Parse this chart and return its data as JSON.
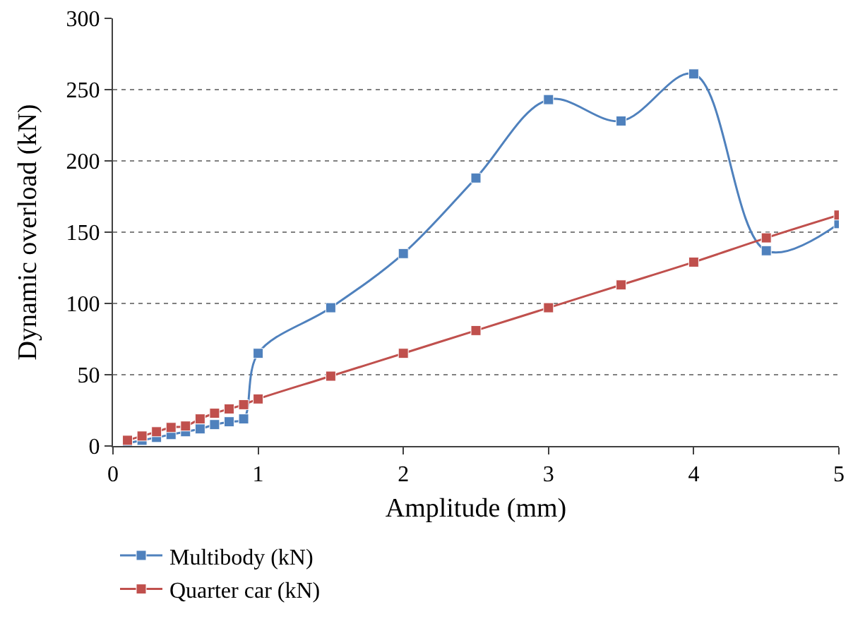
{
  "chart_data": {
    "type": "line",
    "xlabel": "Amplitude (mm)",
    "ylabel": "Dynamic overload (kN)",
    "x": [
      0.1,
      0.2,
      0.3,
      0.4,
      0.5,
      0.6,
      0.7,
      0.8,
      0.9,
      1,
      1.5,
      2,
      2.5,
      3,
      3.5,
      4,
      4.5,
      5
    ],
    "series": [
      {
        "name": "Multibody (kN)",
        "color": "#4f81bd",
        "values": [
          2,
          4,
          6,
          8,
          10,
          12,
          15,
          17,
          19,
          65,
          97,
          135,
          188,
          243,
          228,
          261,
          137,
          156
        ]
      },
      {
        "name": "Quarter car (kN)",
        "color": "#c0504d",
        "values": [
          4,
          7,
          10,
          13,
          14,
          19,
          23,
          26,
          29,
          33,
          49,
          65,
          81,
          97,
          113,
          129,
          146,
          162
        ]
      }
    ],
    "xlim": [
      0,
      5
    ],
    "xticks": [
      0,
      1,
      2,
      3,
      4,
      5
    ],
    "ylim": [
      0,
      300
    ],
    "yticks": [
      0,
      50,
      100,
      150,
      200,
      250,
      300
    ],
    "grid": "y",
    "legend": "bottom",
    "marker": "square",
    "line_style": "solid"
  }
}
